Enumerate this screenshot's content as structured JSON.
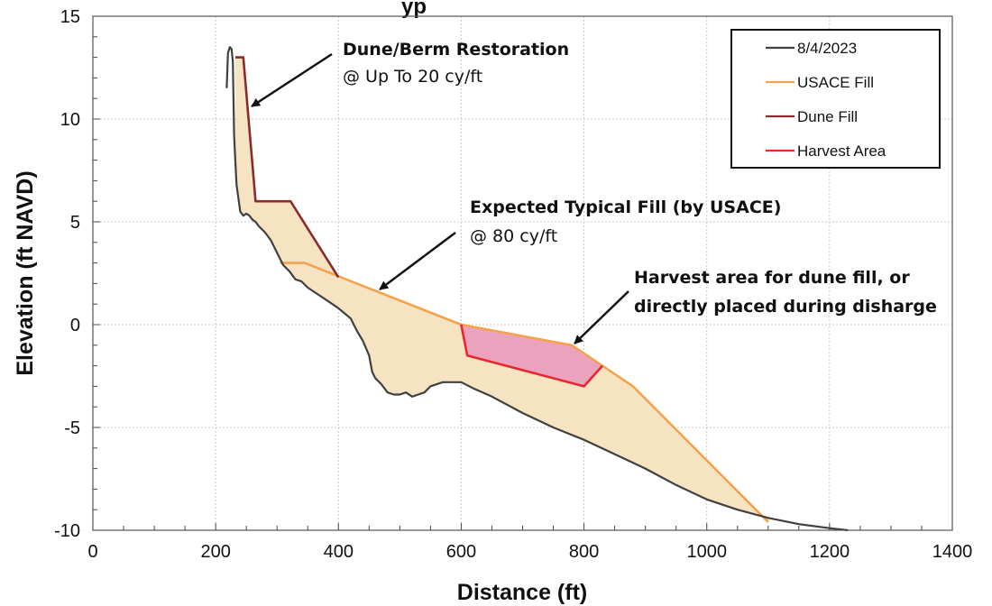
{
  "chart_data": {
    "type": "line",
    "title_fragment": "yp",
    "xlabel": "Distance (ft)",
    "ylabel": "Elevation (ft NAVD)",
    "xlim": [
      0,
      1400
    ],
    "ylim": [
      -10,
      15
    ],
    "xticks": [
      0,
      200,
      400,
      600,
      800,
      1000,
      1200,
      1400
    ],
    "yticks": [
      -10,
      -5,
      0,
      5,
      10,
      15
    ],
    "grid": true,
    "legend_position": "top-right",
    "series": [
      {
        "name": "8/4/2023",
        "color": "#404040",
        "x": [
          218,
          220,
          223,
          226,
          228,
          230,
          232,
          234,
          240,
          245,
          250,
          255,
          260,
          265,
          270,
          280,
          290,
          300,
          310,
          320,
          330,
          340,
          350,
          360,
          380,
          400,
          420,
          430,
          440,
          450,
          455,
          460,
          470,
          480,
          490,
          500,
          510,
          520,
          530,
          540,
          550,
          560,
          570,
          580,
          590,
          600,
          620,
          650,
          700,
          750,
          800,
          850,
          900,
          950,
          1000,
          1050,
          1100,
          1150,
          1200,
          1230
        ],
        "y": [
          11.5,
          13.2,
          13.5,
          13.4,
          12.8,
          9.2,
          8.0,
          6.8,
          5.5,
          5.3,
          5.4,
          5.3,
          5.1,
          5.0,
          4.8,
          4.5,
          4.1,
          3.5,
          2.9,
          2.6,
          2.2,
          2.1,
          1.8,
          1.6,
          1.2,
          0.8,
          0.3,
          -0.3,
          -0.8,
          -1.5,
          -2.3,
          -2.6,
          -2.9,
          -3.3,
          -3.4,
          -3.4,
          -3.3,
          -3.5,
          -3.4,
          -3.3,
          -3.0,
          -2.9,
          -2.8,
          -2.8,
          -2.8,
          -2.8,
          -3.1,
          -3.5,
          -4.3,
          -5.0,
          -5.6,
          -6.3,
          -7.0,
          -7.8,
          -8.5,
          -9.0,
          -9.4,
          -9.7,
          -9.9,
          -10.0
        ]
      },
      {
        "name": "USACE Fill",
        "color": "#f4a24c",
        "x": [
          305,
          345,
          600,
          780,
          830,
          880,
          1100
        ],
        "y": [
          3.0,
          3.0,
          0.0,
          -1.0,
          -2.0,
          -3.0,
          -9.6
        ]
      },
      {
        "name": "Dune Fill",
        "color": "#8b2b2b",
        "x": [
          232,
          245,
          265,
          322,
          400
        ],
        "y": [
          13.0,
          13.0,
          6.0,
          6.0,
          2.3
        ]
      },
      {
        "name": "Harvest Area",
        "color": "#e8262f",
        "x": [
          600,
          610,
          800,
          830
        ],
        "y": [
          0.0,
          -1.5,
          -3.0,
          -2.0
        ]
      }
    ],
    "fill_area": {
      "color": "#f5e3c2",
      "polygon_x": [
        232,
        245,
        265,
        322,
        400,
        600,
        780,
        830,
        880,
        1100
      ],
      "polygon_y": [
        13.0,
        13.0,
        6.0,
        6.0,
        2.3,
        0.0,
        -1.0,
        -2.0,
        -3.0,
        -9.6
      ]
    },
    "harvest_area": {
      "color": "#eaa2bd",
      "polygon_x": [
        600,
        780,
        830,
        800,
        610
      ],
      "polygon_y": [
        0.0,
        -1.0,
        -2.0,
        -3.0,
        -1.5
      ]
    },
    "annotations": [
      {
        "bold": "Dune/Berm Restoration",
        "plain": "@ Up To 20 cy/ft"
      },
      {
        "bold": "Expected Typical Fill (by USACE)",
        "plain": "@ 80 cy/ft"
      },
      {
        "bold": "Harvest area for dune fill, or",
        "plain": "directly placed during disharge"
      }
    ]
  }
}
